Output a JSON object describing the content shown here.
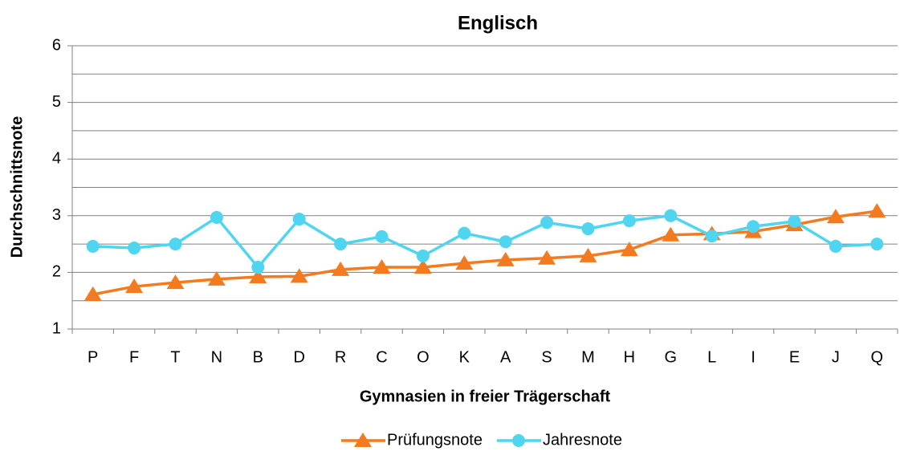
{
  "chart_data": {
    "type": "line",
    "title": "Englisch",
    "x_label": "Gymnasien in freier Trägerschaft",
    "y_label": "Durchschnittsnote",
    "categories": [
      "P",
      "F",
      "T",
      "N",
      "B",
      "D",
      "R",
      "C",
      "O",
      "K",
      "A",
      "S",
      "M",
      "H",
      "G",
      "L",
      "I",
      "E",
      "J",
      "Q"
    ],
    "series": [
      {
        "name": "Prüfungsnote",
        "color": "#f47a1f",
        "marker": "triangle",
        "values": [
          1.61,
          1.75,
          1.82,
          1.88,
          1.92,
          1.93,
          2.05,
          2.09,
          2.09,
          2.16,
          2.22,
          2.25,
          2.29,
          2.4,
          2.66,
          2.68,
          2.72,
          2.84,
          2.98,
          3.08
        ]
      },
      {
        "name": "Jahresnote",
        "color": "#4fd5f0",
        "marker": "circle",
        "values": [
          2.46,
          2.43,
          2.5,
          2.97,
          2.09,
          2.94,
          2.5,
          2.63,
          2.29,
          2.69,
          2.54,
          2.88,
          2.77,
          2.91,
          3.0,
          2.64,
          2.81,
          2.9,
          2.46,
          2.5
        ]
      }
    ],
    "ylim": [
      1,
      6
    ],
    "yticks": [
      1,
      2,
      3,
      4,
      5,
      6
    ],
    "y_minor_ticks": [
      1.5,
      2.5,
      3.5,
      4.5,
      5.5
    ],
    "grid": true,
    "legend": "bottom"
  }
}
